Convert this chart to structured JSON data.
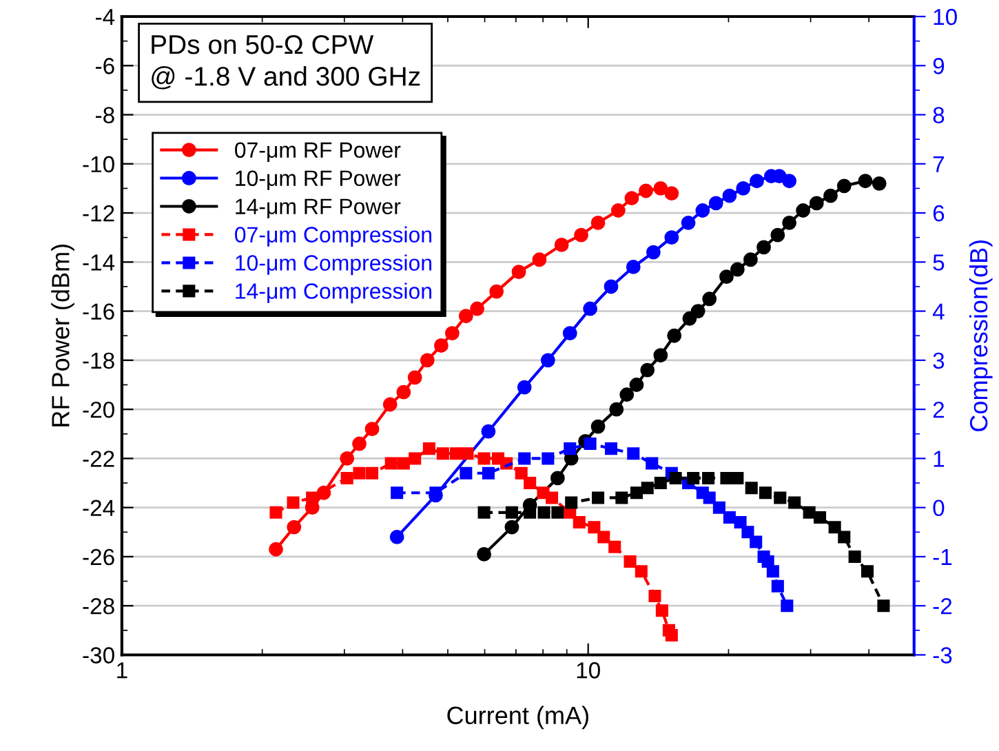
{
  "chart_data": {
    "type": "line",
    "xlabel": "Current (mA)",
    "ylabel": "RF Power (dBm)",
    "y2label": "Compression(dB)",
    "annotations": [
      "PDs on 50-Ω CPW\n@ -1.8 V and 300 GHz"
    ],
    "log": "x",
    "xlim": [
      1,
      50
    ],
    "xticks": [
      1,
      10
    ],
    "ylim": [
      -30,
      -4
    ],
    "yticks": [
      -30,
      -28,
      -26,
      -24,
      -22,
      -20,
      -18,
      -16,
      -14,
      -12,
      -10,
      -8,
      -6,
      -4
    ],
    "y2lim": [
      -3,
      10
    ],
    "y2ticks": [
      -3,
      -2,
      -1,
      0,
      1,
      2,
      3,
      4,
      5,
      6,
      7,
      8,
      9,
      10
    ],
    "grid": "y",
    "legend": "top left",
    "series": [
      {
        "name": "07-μm RF Power",
        "color": "#ff0000",
        "marker": "circle",
        "line_style": "solid",
        "x": [
          2.14,
          2.34,
          2.56,
          2.71,
          3.04,
          3.23,
          3.44,
          3.76,
          4.02,
          4.25,
          4.52,
          4.84,
          5.11,
          5.47,
          5.78,
          6.36,
          7.1,
          7.86,
          8.77,
          9.66,
          10.5,
          11.6,
          12.4,
          13.3,
          14.3,
          15.1
        ],
        "values": [
          -25.7,
          -24.8,
          -24.0,
          -23.4,
          -22.0,
          -21.4,
          -20.8,
          -19.8,
          -19.3,
          -18.7,
          -18.0,
          -17.4,
          -16.9,
          -16.2,
          -15.9,
          -15.2,
          -14.4,
          -13.9,
          -13.3,
          -12.9,
          -12.4,
          -11.9,
          -11.4,
          -11.1,
          -11.0,
          -11.2
        ]
      },
      {
        "name": "10-μm RF Power",
        "color": "#0000ff",
        "marker": "circle",
        "line_style": "solid",
        "x": [
          3.89,
          4.71,
          6.11,
          7.3,
          8.2,
          9.14,
          10.1,
          11.2,
          12.5,
          13.8,
          15.1,
          16.4,
          17.6,
          18.8,
          20.1,
          21.5,
          23.0,
          24.7,
          25.7,
          27.0
        ],
        "values": [
          -25.2,
          -23.5,
          -20.9,
          -19.1,
          -18.0,
          -16.9,
          -15.9,
          -15.0,
          -14.2,
          -13.6,
          -13.0,
          -12.4,
          -11.9,
          -11.6,
          -11.3,
          -11.0,
          -10.7,
          -10.5,
          -10.5,
          -10.7
        ]
      },
      {
        "name": "14-μm RF Power",
        "color": "#000000",
        "marker": "circle",
        "line_style": "solid",
        "x": [
          5.98,
          6.86,
          7.5,
          8.6,
          9.2,
          9.86,
          10.5,
          11.5,
          12.1,
          12.7,
          13.4,
          14.3,
          15.3,
          16.5,
          17.2,
          18.2,
          19.8,
          20.9,
          22.3,
          23.8,
          25.5,
          27.0,
          28.9,
          30.9,
          33.1,
          35.4,
          39.3,
          42.1
        ],
        "values": [
          -25.9,
          -24.8,
          -23.9,
          -22.8,
          -22.0,
          -21.3,
          -20.7,
          -20.0,
          -19.4,
          -19.0,
          -18.4,
          -17.8,
          -17.0,
          -16.3,
          -16.0,
          -15.5,
          -14.6,
          -14.3,
          -13.9,
          -13.4,
          -12.9,
          -12.4,
          -11.9,
          -11.6,
          -11.3,
          -10.9,
          -10.7,
          -10.8
        ]
      },
      {
        "name": "07-μm Compression",
        "color": "#ff0000",
        "marker": "square",
        "line_style": "dashed",
        "axis": "y2",
        "x": [
          2.14,
          2.33,
          2.56,
          3.04,
          3.23,
          3.44,
          3.78,
          4.02,
          4.25,
          4.56,
          4.88,
          5.21,
          5.51,
          5.98,
          6.41,
          6.68,
          7.19,
          7.5,
          8.01,
          8.36,
          9.14,
          9.57,
          10.3,
          10.8,
          11.4,
          12.3,
          13.0,
          13.9,
          14.4,
          14.9,
          15.1
        ],
        "values": [
          -0.1,
          0.1,
          0.2,
          0.6,
          0.7,
          0.7,
          0.9,
          0.9,
          1.0,
          1.2,
          1.1,
          1.1,
          1.1,
          1.0,
          1.0,
          0.9,
          0.7,
          0.5,
          0.3,
          0.2,
          -0.1,
          -0.3,
          -0.4,
          -0.6,
          -0.8,
          -1.1,
          -1.3,
          -1.8,
          -2.1,
          -2.5,
          -2.6
        ]
      },
      {
        "name": "10-μm Compression",
        "color": "#0000ff",
        "marker": "square",
        "line_style": "dashed",
        "axis": "y2",
        "x": [
          3.89,
          4.71,
          5.47,
          6.11,
          7.3,
          8.2,
          9.14,
          10.1,
          11.2,
          12.5,
          13.7,
          15.1,
          16.4,
          17.6,
          18.2,
          19.1,
          20.1,
          21.2,
          22.0,
          22.9,
          23.8,
          24.3,
          24.9,
          25.5,
          26.7
        ],
        "values": [
          0.3,
          0.3,
          0.7,
          0.7,
          1.0,
          1.0,
          1.2,
          1.3,
          1.2,
          1.1,
          0.9,
          0.7,
          0.5,
          0.3,
          0.2,
          0.0,
          -0.2,
          -0.3,
          -0.5,
          -0.7,
          -1.0,
          -1.1,
          -1.3,
          -1.6,
          -2.0
        ]
      },
      {
        "name": "14-μm Compression",
        "color": "#000000",
        "marker": "square",
        "line_style": "dashed",
        "axis": "y2",
        "x": [
          5.98,
          6.86,
          7.5,
          8.04,
          8.6,
          9.2,
          10.5,
          11.8,
          12.7,
          13.4,
          14.3,
          15.4,
          16.8,
          18.1,
          19.8,
          20.9,
          22.4,
          24.0,
          25.8,
          27.7,
          29.8,
          31.4,
          33.8,
          35.4,
          37.3,
          39.7,
          43.0
        ],
        "values": [
          -0.1,
          -0.1,
          -0.1,
          -0.1,
          -0.1,
          0.1,
          0.2,
          0.2,
          0.3,
          0.4,
          0.5,
          0.6,
          0.6,
          0.6,
          0.6,
          0.6,
          0.4,
          0.3,
          0.2,
          0.1,
          -0.1,
          -0.2,
          -0.4,
          -0.6,
          -1.0,
          -1.3,
          -2.0
        ]
      }
    ]
  }
}
